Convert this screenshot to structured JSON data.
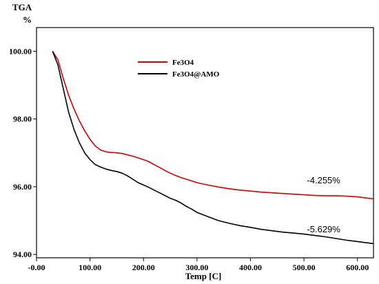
{
  "chart_data": {
    "type": "line",
    "y_axis_title_line1": "TGA",
    "y_axis_title_line2": "%",
    "xlabel": "Temp  [C]",
    "xlim": [
      0,
      630
    ],
    "ylim": [
      93.9,
      100.7
    ],
    "x_ticks": [
      0,
      100,
      200,
      300,
      400,
      500,
      600
    ],
    "x_tick_labels": [
      "-0.00",
      "100.00",
      "200.00",
      "300.00",
      "400.00",
      "500.00",
      "600.00"
    ],
    "y_ticks": [
      94,
      96,
      98,
      100
    ],
    "y_tick_labels": [
      "94.00",
      "96.00",
      "98.00",
      "100.00"
    ],
    "legend_position": "top-center",
    "series": [
      {
        "name": "Fe3O4",
        "color": "#cc0000",
        "x": [
          30,
          40,
          50,
          60,
          70,
          80,
          90,
          100,
          110,
          120,
          130,
          140,
          150,
          160,
          170,
          180,
          190,
          200,
          210,
          220,
          230,
          240,
          250,
          260,
          270,
          280,
          290,
          300,
          320,
          340,
          360,
          380,
          400,
          420,
          440,
          460,
          480,
          500,
          520,
          540,
          560,
          580,
          600,
          620,
          630
        ],
        "y": [
          100.0,
          99.75,
          99.2,
          98.7,
          98.3,
          97.95,
          97.65,
          97.4,
          97.2,
          97.08,
          97.03,
          97.01,
          97.0,
          96.98,
          96.94,
          96.9,
          96.85,
          96.8,
          96.74,
          96.65,
          96.57,
          96.48,
          96.4,
          96.33,
          96.27,
          96.22,
          96.17,
          96.12,
          96.05,
          95.99,
          95.94,
          95.9,
          95.87,
          95.84,
          95.82,
          95.8,
          95.78,
          95.76,
          95.74,
          95.73,
          95.73,
          95.72,
          95.7,
          95.66,
          95.64
        ]
      },
      {
        "name": "Fe3O4@AMO",
        "color": "#000000",
        "x": [
          30,
          40,
          50,
          60,
          70,
          80,
          90,
          100,
          110,
          120,
          130,
          140,
          150,
          160,
          170,
          180,
          190,
          200,
          210,
          220,
          230,
          240,
          250,
          260,
          270,
          280,
          290,
          300,
          320,
          340,
          360,
          380,
          400,
          420,
          440,
          460,
          480,
          500,
          520,
          540,
          560,
          580,
          600,
          620,
          630
        ],
        "y": [
          100.0,
          99.6,
          98.9,
          98.2,
          97.7,
          97.3,
          97.0,
          96.8,
          96.65,
          96.58,
          96.52,
          96.48,
          96.45,
          96.4,
          96.32,
          96.22,
          96.12,
          96.05,
          95.98,
          95.9,
          95.82,
          95.74,
          95.66,
          95.6,
          95.52,
          95.42,
          95.34,
          95.24,
          95.12,
          95.0,
          94.92,
          94.85,
          94.8,
          94.74,
          94.7,
          94.66,
          94.63,
          94.6,
          94.56,
          94.52,
          94.47,
          94.42,
          94.38,
          94.34,
          94.32
        ]
      }
    ],
    "annotations": [
      {
        "text": "-4.255%",
        "x": 570,
        "y": 96.1
      },
      {
        "text": "-5.629%",
        "x": 570,
        "y": 94.65
      }
    ]
  }
}
